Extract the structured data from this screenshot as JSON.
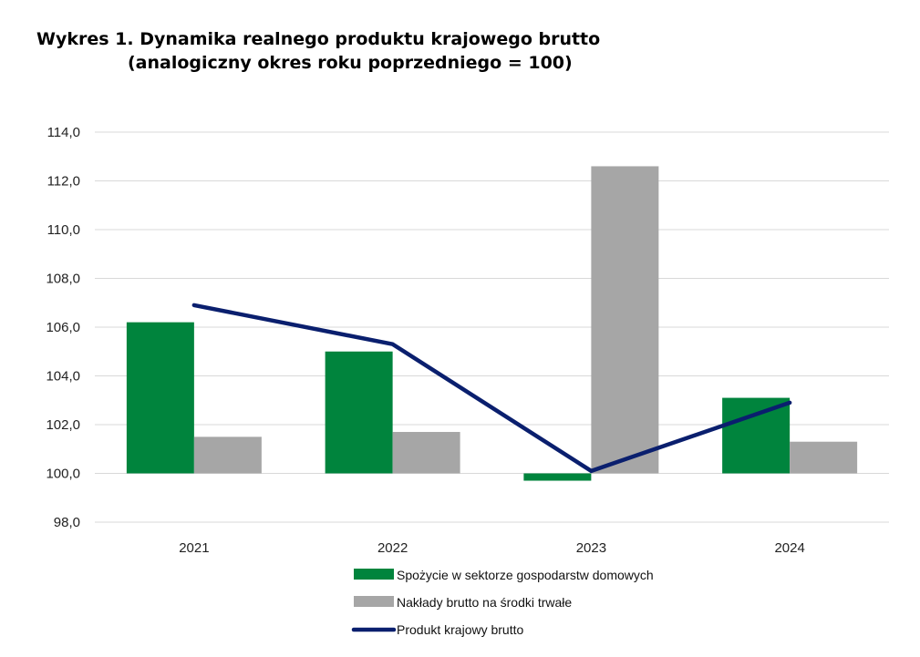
{
  "chart_data": {
    "type": "bar",
    "title": "Wykres 1. Dynamika realnego produktu krajowego brutto",
    "subtitle": "(analogiczny okres roku poprzedniego = 100)",
    "categories": [
      "2021",
      "2022",
      "2023",
      "2024"
    ],
    "ylim": [
      98.0,
      114.0
    ],
    "yticks": [
      "98,0",
      "100,0",
      "102,0",
      "104,0",
      "106,0",
      "108,0",
      "110,0",
      "112,0",
      "114,0"
    ],
    "ytick_values": [
      98,
      100,
      102,
      104,
      106,
      108,
      110,
      112,
      114
    ],
    "baseline": 100,
    "grid": true,
    "legend_position": "bottom",
    "series": [
      {
        "name": "Spożycie w sektorze gospodarstw domowych",
        "kind": "bar",
        "color": "#00843D",
        "values": [
          106.2,
          105.0,
          99.7,
          103.1
        ]
      },
      {
        "name": "Nakłady brutto na środki trwałe",
        "kind": "bar",
        "color": "#A6A6A6",
        "values": [
          101.5,
          101.7,
          112.6,
          101.3
        ]
      },
      {
        "name": "Produkt krajowy brutto",
        "kind": "line",
        "color": "#0A1F6E",
        "values": [
          106.9,
          105.3,
          100.1,
          102.9
        ]
      }
    ]
  }
}
